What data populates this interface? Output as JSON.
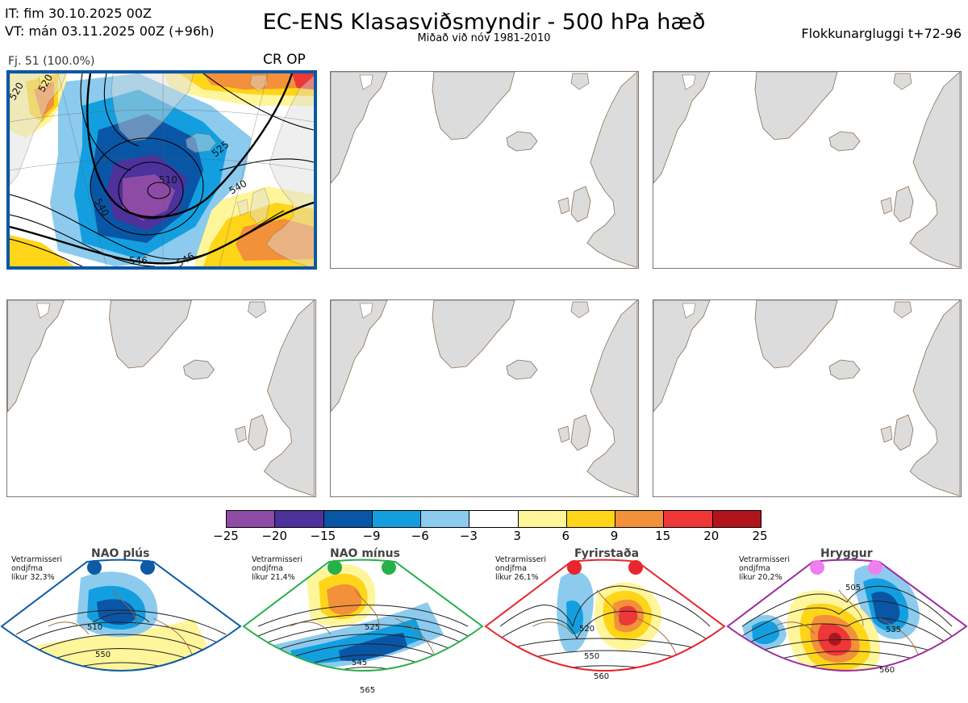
{
  "header": {
    "init_time": "IT: fim 30.10.2025 00Z",
    "valid_time": "VT: mán 03.11.2025 00Z  (+96h)",
    "title": "EC-ENS Klasasviðsmyndir - 500 hPa hæð",
    "subtitle": "Miðað við nóv 1981-2010",
    "window": "Flokkunargluggi t+72-96"
  },
  "cluster": {
    "label": "Fj. 51 (100.0%)",
    "tags": "CR OP",
    "contour_labels": [
      "510",
      "525",
      "540",
      "540",
      "546",
      "546",
      "520",
      "520"
    ]
  },
  "colorbar": {
    "ticks": [
      "−25",
      "−20",
      "−15",
      "−9",
      "−6",
      "−3",
      "3",
      "6",
      "9",
      "15",
      "20",
      "25"
    ],
    "colors": [
      "#8e4ba6",
      "#4c329a",
      "#0a56a6",
      "#139fdf",
      "#8ccbee",
      "#ffffff",
      "#fff59a",
      "#ffd51a",
      "#f3903a",
      "#ee3737",
      "#b0151e"
    ]
  },
  "regimes": [
    {
      "title": "NAO plús",
      "stats": [
        "Vetrarmisseri",
        "ondjfma",
        "líkur 32,3%"
      ],
      "color": "#0d5aa7",
      "contours": [
        "510",
        "550"
      ]
    },
    {
      "title": "NAO mínus",
      "stats": [
        "Vetrarmisseri",
        "ondjfma",
        "líkur 21,4%"
      ],
      "color": "#27b04a",
      "contours": [
        "525",
        "545",
        "565"
      ]
    },
    {
      "title": "Fyrirstaða",
      "stats": [
        "Vetrarmisseri",
        "ondjfma",
        "líkur 26,1%"
      ],
      "color": "#e8262b",
      "contours": [
        "520",
        "550",
        "560"
      ]
    },
    {
      "title": "Hryggur",
      "stats": [
        "Vetrarmisseri",
        "ondjfma",
        "líkur 20,2%"
      ],
      "color": "#9b2b9e",
      "contours": [
        "505",
        "535",
        "560"
      ]
    }
  ]
}
